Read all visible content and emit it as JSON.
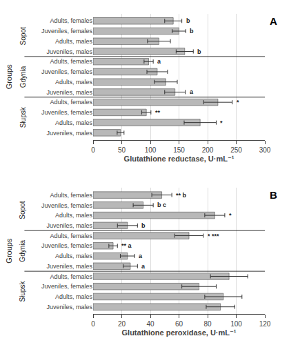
{
  "chart_data": [
    {
      "type": "bar",
      "orientation": "horizontal",
      "title": "A",
      "xlabel": "Glutathione reductase, U·mL⁻¹",
      "ylabel": "Groups",
      "categories": [
        "Adults, females",
        "Juveniles, females",
        "Adults, males",
        "Juveniles, males",
        "Adults, females",
        "Juveniles, females",
        "Adults, males",
        "Juveniles, males",
        "Adults, females",
        "Juveniles, females",
        "Adults, males",
        "Juveniles, males"
      ],
      "group_labels": [
        "Sopot",
        "Gdynia",
        "Słupsk"
      ],
      "values": [
        140,
        150,
        115,
        160,
        97,
        112,
        127,
        143,
        218,
        93,
        187,
        48
      ],
      "errors": [
        15,
        12,
        20,
        15,
        8,
        18,
        20,
        18,
        25,
        8,
        28,
        6
      ],
      "annotations": [
        "b",
        "b",
        null,
        "b",
        "a",
        null,
        null,
        "a",
        "*",
        "**",
        "*",
        null
      ],
      "color": "#b8b8b8",
      "xlim": [
        0,
        300
      ],
      "xticks": [
        0,
        50,
        100,
        150,
        200,
        250,
        300
      ],
      "grid": true
    },
    {
      "type": "bar",
      "orientation": "horizontal",
      "title": "B",
      "xlabel": "Glutathione peroxidase, U·mL⁻¹",
      "ylabel": "Groups",
      "categories": [
        "Adults, females",
        "Juveniles, females",
        "Adults, males",
        "Juveniles, males",
        "Adults, females",
        "Juveniles, females",
        "Adults, males",
        "Juveniles, males",
        "Adults, females",
        "Juveniles, females",
        "Adults, males",
        "Juveniles, males"
      ],
      "group_labels": [
        "Sopot",
        "Gdynia",
        "Słupsk"
      ],
      "values": [
        48,
        35,
        85,
        24,
        67,
        14,
        24,
        26,
        95,
        74,
        91,
        89
      ],
      "errors": [
        7,
        7,
        7,
        7,
        10,
        3,
        5,
        5,
        13,
        12,
        13,
        10
      ],
      "annotations": [
        "** b",
        "b c",
        "*",
        "b",
        "* ***",
        "** a",
        "a",
        "a",
        null,
        null,
        null,
        null
      ],
      "color": "#b8b8b8",
      "xlim": [
        0,
        120
      ],
      "xticks": [
        0,
        20,
        40,
        60,
        80,
        100,
        120
      ],
      "grid": true
    }
  ]
}
